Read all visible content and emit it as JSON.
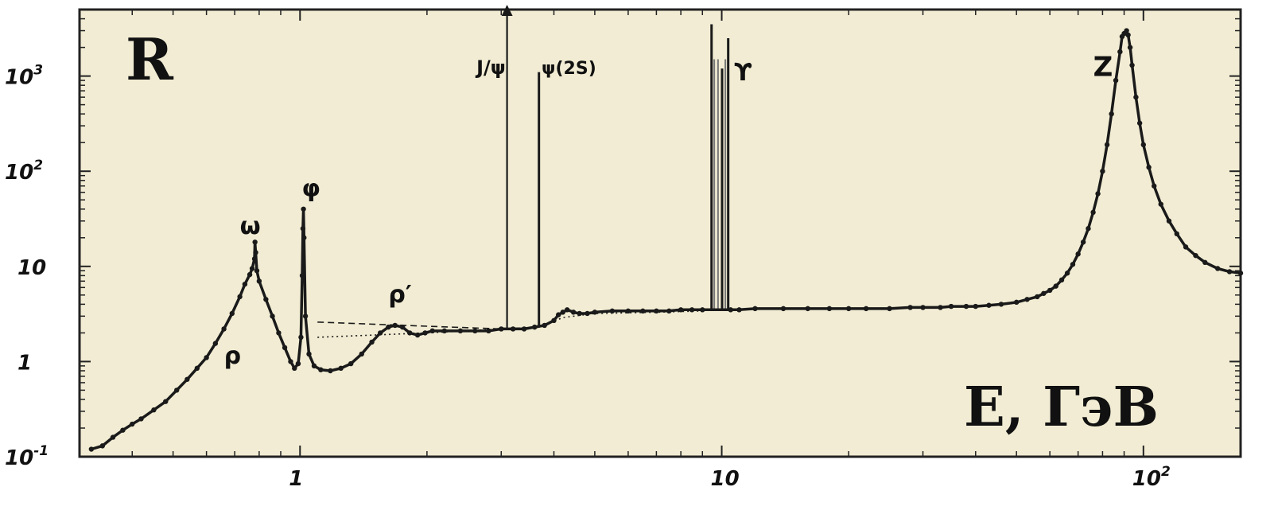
{
  "chart_data": {
    "type": "scatter",
    "title": "",
    "ylabel": "R",
    "xlabel": "E, ГэВ",
    "x_scale": "log",
    "y_scale": "log",
    "xlim": [
      0.3,
      170
    ],
    "ylim": [
      0.1,
      5000
    ],
    "background_color": "#f1ecd3",
    "mark_color": "#1a1a1a",
    "x_ticks": [
      {
        "value": 1,
        "label": "1",
        "exp": ""
      },
      {
        "value": 10,
        "label": "10",
        "exp": ""
      },
      {
        "value": 100,
        "label": "10",
        "exp": "2"
      }
    ],
    "y_ticks": [
      {
        "value": 0.1,
        "label": "10",
        "exp": "-1"
      },
      {
        "value": 1,
        "label": "1",
        "exp": ""
      },
      {
        "value": 10,
        "label": "10",
        "exp": ""
      },
      {
        "value": 100,
        "label": "10",
        "exp": "2"
      },
      {
        "value": 1000,
        "label": "10",
        "exp": "3"
      }
    ],
    "resonance_labels": [
      "ρ",
      "ω",
      "φ",
      "ρ′",
      "J/ψ",
      "ψ(2S)",
      "ϒ",
      "Z"
    ],
    "series": [
      {
        "points": [
          [
            0.32,
            0.12
          ],
          [
            0.34,
            0.13
          ],
          [
            0.36,
            0.16
          ],
          [
            0.38,
            0.19
          ],
          [
            0.4,
            0.22
          ],
          [
            0.42,
            0.25
          ],
          [
            0.45,
            0.31
          ],
          [
            0.48,
            0.38
          ],
          [
            0.51,
            0.5
          ],
          [
            0.54,
            0.65
          ],
          [
            0.57,
            0.85
          ],
          [
            0.6,
            1.1
          ],
          [
            0.63,
            1.55
          ],
          [
            0.66,
            2.2
          ],
          [
            0.69,
            3.2
          ],
          [
            0.72,
            4.8
          ],
          [
            0.74,
            6.5
          ],
          [
            0.76,
            8.2
          ],
          [
            0.77,
            9.5
          ],
          [
            0.78,
            12.0
          ],
          [
            0.782,
            18.0
          ],
          [
            0.785,
            14.0
          ],
          [
            0.79,
            9.0
          ],
          [
            0.8,
            7.0
          ],
          [
            0.83,
            4.5
          ],
          [
            0.86,
            3.0
          ],
          [
            0.89,
            2.0
          ],
          [
            0.92,
            1.4
          ],
          [
            0.95,
            1.0
          ],
          [
            0.97,
            0.85
          ],
          [
            0.99,
            0.95
          ],
          [
            1.005,
            1.8
          ],
          [
            1.012,
            8.0
          ],
          [
            1.016,
            25.0
          ],
          [
            1.019,
            40.0
          ],
          [
            1.022,
            20.0
          ],
          [
            1.03,
            3.0
          ],
          [
            1.05,
            1.2
          ],
          [
            1.08,
            0.9
          ],
          [
            1.12,
            0.82
          ],
          [
            1.18,
            0.8
          ],
          [
            1.25,
            0.85
          ],
          [
            1.32,
            0.95
          ],
          [
            1.4,
            1.2
          ],
          [
            1.48,
            1.6
          ],
          [
            1.55,
            2.0
          ],
          [
            1.62,
            2.3
          ],
          [
            1.68,
            2.4
          ],
          [
            1.75,
            2.3
          ],
          [
            1.82,
            2.0
          ],
          [
            1.9,
            1.9
          ],
          [
            1.98,
            2.0
          ],
          [
            2.06,
            2.1
          ],
          [
            2.2,
            2.1
          ],
          [
            2.4,
            2.1
          ],
          [
            2.6,
            2.1
          ],
          [
            2.8,
            2.1
          ],
          [
            3.0,
            2.2
          ],
          [
            3.2,
            2.2
          ],
          [
            3.4,
            2.2
          ],
          [
            3.6,
            2.3
          ],
          [
            3.8,
            2.4
          ],
          [
            4.0,
            2.7
          ],
          [
            4.1,
            3.1
          ],
          [
            4.2,
            3.3
          ],
          [
            4.3,
            3.5
          ],
          [
            4.45,
            3.3
          ],
          [
            4.6,
            3.2
          ],
          [
            4.8,
            3.2
          ],
          [
            5.0,
            3.3
          ],
          [
            5.5,
            3.4
          ],
          [
            6.0,
            3.4
          ],
          [
            6.5,
            3.4
          ],
          [
            7.0,
            3.4
          ],
          [
            7.5,
            3.4
          ],
          [
            8.0,
            3.5
          ],
          [
            8.5,
            3.5
          ],
          [
            9.0,
            3.5
          ],
          [
            10.5,
            3.5
          ],
          [
            11.0,
            3.5
          ],
          [
            12.0,
            3.6
          ],
          [
            14.0,
            3.6
          ],
          [
            16.0,
            3.6
          ],
          [
            18.0,
            3.6
          ],
          [
            20.0,
            3.6
          ],
          [
            22.0,
            3.6
          ],
          [
            25.0,
            3.6
          ],
          [
            28.0,
            3.7
          ],
          [
            30.0,
            3.7
          ],
          [
            33.0,
            3.7
          ],
          [
            35.0,
            3.8
          ],
          [
            38.0,
            3.8
          ],
          [
            40.0,
            3.8
          ],
          [
            43.0,
            3.9
          ],
          [
            46.0,
            4.0
          ],
          [
            50.0,
            4.2
          ],
          [
            53.0,
            4.5
          ],
          [
            56.0,
            4.8
          ],
          [
            58.0,
            5.2
          ],
          [
            60.0,
            5.6
          ],
          [
            62.0,
            6.2
          ],
          [
            64.0,
            7.2
          ],
          [
            66.0,
            8.5
          ],
          [
            68.0,
            10.5
          ],
          [
            70.0,
            13.5
          ],
          [
            72.0,
            18.0
          ],
          [
            74.0,
            25.0
          ],
          [
            76.0,
            37.0
          ],
          [
            78.0,
            58.0
          ],
          [
            80.0,
            100
          ],
          [
            82.0,
            190
          ],
          [
            84.0,
            400
          ],
          [
            86.0,
            900
          ],
          [
            88.0,
            1800
          ],
          [
            89.0,
            2600
          ],
          [
            90.0,
            2800
          ],
          [
            91.2,
            3000
          ],
          [
            92.0,
            2700
          ],
          [
            93.0,
            2000
          ],
          [
            94.0,
            1300
          ],
          [
            96.0,
            600
          ],
          [
            98.0,
            320
          ],
          [
            100.0,
            190
          ],
          [
            103.0,
            110
          ],
          [
            106.0,
            70.0
          ],
          [
            110.0,
            45.0
          ],
          [
            115.0,
            30.0
          ],
          [
            120.0,
            22.0
          ],
          [
            126.0,
            16.0
          ],
          [
            133.0,
            13.0
          ],
          [
            140.0,
            11.0
          ],
          [
            150.0,
            9.5
          ],
          [
            160.0,
            8.8
          ],
          [
            170.0,
            8.5
          ]
        ]
      },
      {
        "points": [
          [
            3.097,
            2.2
          ],
          [
            3.097,
            5000
          ]
        ]
      },
      {
        "points": [
          [
            3.686,
            2.3
          ],
          [
            3.686,
            1100
          ]
        ]
      },
      {
        "points": [
          [
            9.46,
            3.5
          ],
          [
            9.46,
            3500
          ],
          [
            10.02,
            3.5
          ],
          [
            10.02,
            1200
          ],
          [
            10.36,
            3.5
          ],
          [
            10.36,
            2500
          ]
        ]
      },
      {
        "points": [
          [
            1.1,
            2.6
          ],
          [
            2.0,
            2.35
          ],
          [
            3.0,
            2.2
          ],
          [
            3.7,
            2.3
          ]
        ]
      },
      {
        "points": [
          [
            1.1,
            1.8
          ],
          [
            2.0,
            2.0
          ],
          [
            3.0,
            2.2
          ],
          [
            3.7,
            2.3
          ],
          [
            4.2,
            2.9
          ],
          [
            5.0,
            3.2
          ],
          [
            7.0,
            3.3
          ],
          [
            9.0,
            3.4
          ]
        ]
      }
    ]
  }
}
